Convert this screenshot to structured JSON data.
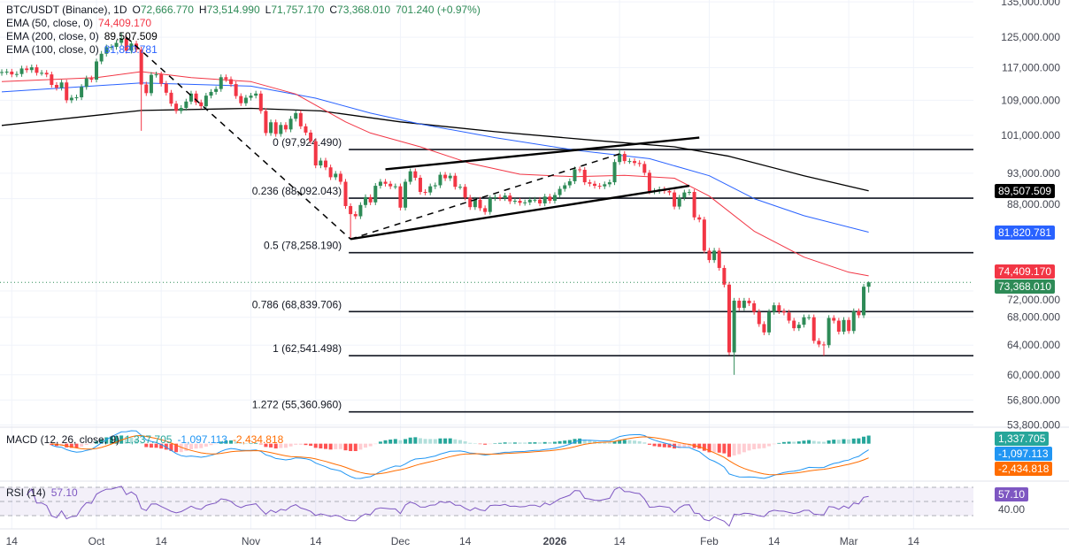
{
  "legend": {
    "symbol": "BTC/USDT (Binance), 1D",
    "open_label": "O",
    "open": "72,666.770",
    "high_label": "H",
    "high": "73,514.990",
    "low_label": "L",
    "low": "71,757.170",
    "close_label": "C",
    "close": "73,368.010",
    "change": "701.240 (+0.97%)",
    "ema50_label": "EMA (50, close, 0)",
    "ema50_value": "74,409.170",
    "ema200_label": "EMA (200, close, 0)",
    "ema200_value": "89,507.509",
    "ema100_label": "EMA (100, close, 0)",
    "ema100_value": "81,820.781",
    "macd_label": "MACD (12, 26, close, 9)",
    "macd_hist": "1,337.705",
    "macd_line": "-1,097.113",
    "macd_signal": "-2,434.818",
    "rsi_label": "RSI (14)",
    "rsi_value": "57.10"
  },
  "badges": {
    "ema200": {
      "text": "89,507.509",
      "value": 89507.509,
      "color": "#000000"
    },
    "ema100": {
      "text": "81,820.781",
      "value": 81820.781,
      "color": "#2962ff"
    },
    "ema50": {
      "text": "74,409.170",
      "value": 74409.17,
      "color": "#f23645"
    },
    "last": {
      "text": "73,368.010",
      "value": 73368.01,
      "color": "#2e8b57"
    },
    "macd_hist": {
      "text": "1,337.705",
      "color": "#26a69a"
    },
    "macd_line": {
      "text": "-1,097.113",
      "color": "#2196f3"
    },
    "macd_signal": {
      "text": "-2,434.818",
      "color": "#ff6d00"
    },
    "rsi": {
      "text": "57.10",
      "color": "#7e57c2"
    }
  },
  "colors": {
    "up": "#2e8b57",
    "down": "#f23645",
    "ema50": "#f23645",
    "ema100": "#2962ff",
    "ema200": "#000000",
    "macd": "#2196f3",
    "signal": "#ff6d00",
    "rsi": "#7e57c2"
  },
  "chart_data": {
    "type": "candlestick",
    "title": "BTC/USDT (Binance), 1D",
    "y_scale": "log",
    "grid": true,
    "start_date": "2025-09-12",
    "closes": [
      115900,
      116000,
      115300,
      115400,
      116800,
      116400,
      117100,
      115700,
      115700,
      115300,
      112700,
      112000,
      113300,
      109000,
      109600,
      109700,
      112200,
      114300,
      114000,
      118600,
      120600,
      122300,
      122400,
      123500,
      124700,
      121400,
      123300,
      121700,
      112800,
      110700,
      115200,
      115300,
      113000,
      110800,
      108200,
      106500,
      107200,
      108700,
      110600,
      108500,
      107600,
      110100,
      111000,
      111700,
      114600,
      114100,
      112900,
      110000,
      108300,
      109600,
      110100,
      110600,
      106500,
      101500,
      103900,
      101300,
      103300,
      102300,
      104700,
      106000,
      103000,
      101600,
      99700,
      94600,
      95600,
      94200,
      92200,
      92900,
      91300,
      86600,
      85100,
      84700,
      86800,
      88300,
      87300,
      90500,
      91300,
      90900,
      90400,
      90400,
      86300,
      91300,
      93400,
      92100,
      89300,
      89200,
      90400,
      90600,
      92700,
      92000,
      92500,
      90300,
      90300,
      88200,
      86400,
      87800,
      86200,
      85500,
      88100,
      88300,
      88100,
      88600,
      87500,
      87600,
      87200,
      87300,
      87800,
      87800,
      87100,
      88400,
      87600,
      88700,
      89900,
      90600,
      91400,
      93800,
      93700,
      91200,
      90900,
      90500,
      90400,
      90800,
      91200,
      95300,
      97000,
      95500,
      95500,
      95100,
      94900,
      93100,
      89400,
      89500,
      89800,
      89500,
      89200,
      86500,
      88200,
      89200,
      89300,
      84500,
      84100,
      78600,
      77000,
      78600,
      75700,
      73000,
      63000,
      70500,
      69400,
      70500,
      70100,
      68800,
      67000,
      65800,
      68800,
      69800,
      68900,
      68700,
      67500,
      66400,
      66900,
      68000,
      68000,
      64600,
      64100,
      64000,
      67900,
      67500,
      65900,
      67600,
      66000,
      68900,
      68300,
      72666.77,
      73368.01
    ],
    "last_candle": {
      "open": 72666.77,
      "high": 73514.99,
      "low": 71757.17,
      "close": 73368.01
    },
    "notable_wicks": [
      {
        "date": "2025-10-06",
        "high": 126200
      },
      {
        "date": "2025-10-10",
        "low": 102000
      },
      {
        "date": "2025-11-21",
        "low": 80600
      },
      {
        "date": "2026-01-14",
        "high": 97924.49
      },
      {
        "date": "2026-02-06",
        "low": 60000
      },
      {
        "date": "2026-02-24",
        "low": 62541.498
      }
    ],
    "ema_series": {
      "ema50": [
        [
          "2025-09-12",
          113500
        ],
        [
          "2025-10-01",
          114500
        ],
        [
          "2025-10-10",
          116000
        ],
        [
          "2025-10-20",
          114500
        ],
        [
          "2025-11-01",
          113500
        ],
        [
          "2025-11-10",
          110500
        ],
        [
          "2025-11-20",
          104000
        ],
        [
          "2025-11-25",
          101500
        ],
        [
          "2025-12-05",
          98500
        ],
        [
          "2025-12-15",
          95000
        ],
        [
          "2025-12-25",
          92800
        ],
        [
          "2026-01-05",
          92300
        ],
        [
          "2026-01-15",
          92600
        ],
        [
          "2026-01-25",
          92000
        ],
        [
          "2026-02-01",
          88500
        ],
        [
          "2026-02-10",
          82000
        ],
        [
          "2026-02-20",
          77500
        ],
        [
          "2026-03-01",
          75000
        ],
        [
          "2026-03-05",
          74409.17
        ]
      ],
      "ema100": [
        [
          "2025-09-12",
          111000
        ],
        [
          "2025-10-10",
          113200
        ],
        [
          "2025-11-01",
          112400
        ],
        [
          "2025-11-14",
          109500
        ],
        [
          "2025-11-25",
          106000
        ],
        [
          "2025-12-05",
          103500
        ],
        [
          "2025-12-20",
          100500
        ],
        [
          "2026-01-05",
          97800
        ],
        [
          "2026-01-20",
          96000
        ],
        [
          "2026-02-01",
          92500
        ],
        [
          "2026-02-10",
          88000
        ],
        [
          "2026-02-20",
          84800
        ],
        [
          "2026-03-05",
          81820.781
        ]
      ],
      "ema200": [
        [
          "2025-09-12",
          103200
        ],
        [
          "2025-10-10",
          106600
        ],
        [
          "2025-11-01",
          107100
        ],
        [
          "2025-11-15",
          106500
        ],
        [
          "2025-12-01",
          104000
        ],
        [
          "2025-12-20",
          101800
        ],
        [
          "2026-01-10",
          99800
        ],
        [
          "2026-01-25",
          98500
        ],
        [
          "2026-02-05",
          96500
        ],
        [
          "2026-02-20",
          92500
        ],
        [
          "2026-03-05",
          89507.509
        ]
      ]
    },
    "fib_levels": [
      {
        "label": "0 (97,924.490)",
        "value": 97924.49
      },
      {
        "label": "0.236 (88,092.043)",
        "value": 88092.043
      },
      {
        "label": "0.5 (78,258.190)",
        "value": 78258.19
      },
      {
        "label": "0.786 (68,839.706)",
        "value": 68839.706
      },
      {
        "label": "1 (62,541.498)",
        "value": 62541.498
      },
      {
        "label": "1.272 (55,360.960)",
        "value": 55360.96
      }
    ],
    "trendlines": [
      {
        "style": "dashed",
        "from": [
          "2025-10-07",
          125000
        ],
        "to": [
          "2025-11-21",
          80600
        ]
      },
      {
        "style": "dashed",
        "from": [
          "2025-11-21",
          80600
        ],
        "to": [
          "2026-01-14",
          97000
        ]
      },
      {
        "style": "solid",
        "from": [
          "2025-11-28",
          93800
        ],
        "to": [
          "2026-01-30",
          100500
        ]
      },
      {
        "style": "solid",
        "from": [
          "2025-11-21",
          80600
        ],
        "to": [
          "2026-01-28",
          90500
        ]
      }
    ],
    "price_axis": [
      "135,000.000",
      "125,000.000",
      "117,000.000",
      "109,000.000",
      "101,000.000",
      "93,000.000",
      "88,000.000",
      "72,000.000",
      "68,000.000",
      "64,000.000",
      "60,000.000",
      "56,800.000",
      "53,800.000"
    ],
    "price_axis_values": [
      135000,
      125000,
      117000,
      109000,
      101000,
      93000,
      88000,
      72000,
      68000,
      64000,
      60000,
      56800,
      53800
    ],
    "rsi_axis": [
      {
        "label": "40.00",
        "value": 40
      }
    ],
    "time_axis": [
      {
        "label": "14",
        "date": "2025-09-14"
      },
      {
        "label": "Oct",
        "date": "2025-10-01"
      },
      {
        "label": "14",
        "date": "2025-10-14"
      },
      {
        "label": "Nov",
        "date": "2025-11-01"
      },
      {
        "label": "14",
        "date": "2025-11-14"
      },
      {
        "label": "Dec",
        "date": "2025-12-01"
      },
      {
        "label": "14",
        "date": "2025-12-14"
      },
      {
        "label": "2026",
        "date": "2026-01-01"
      },
      {
        "label": "14",
        "date": "2026-01-14"
      },
      {
        "label": "Feb",
        "date": "2026-02-01"
      },
      {
        "label": "14",
        "date": "2026-02-14"
      },
      {
        "label": "Mar",
        "date": "2026-03-01"
      },
      {
        "label": "14",
        "date": "2026-03-14"
      }
    ]
  }
}
